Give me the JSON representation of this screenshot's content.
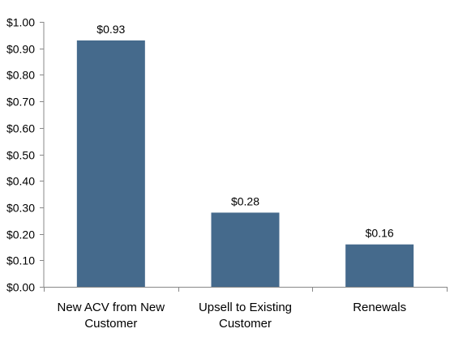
{
  "chart_data": {
    "type": "bar",
    "categories": [
      [
        "New ACV from New",
        "Customer"
      ],
      [
        "Upsell to Existing",
        "Customer"
      ],
      [
        "Renewals"
      ]
    ],
    "values": [
      0.93,
      0.28,
      0.16
    ],
    "data_labels": [
      "$0.93",
      "$0.28",
      "$0.16"
    ],
    "ylim": [
      0,
      1.0
    ],
    "yticks": [
      0.0,
      0.1,
      0.2,
      0.3,
      0.4,
      0.5,
      0.6,
      0.7,
      0.8,
      0.9,
      1.0
    ],
    "ytick_labels": [
      "$0.00",
      "$0.10",
      "$0.20",
      "$0.30",
      "$0.40",
      "$0.50",
      "$0.60",
      "$0.70",
      "$0.80",
      "$0.90",
      "$1.00"
    ],
    "grid": false,
    "legend": "none",
    "bar_color": "#456A8C",
    "axis_color": "#888888"
  }
}
